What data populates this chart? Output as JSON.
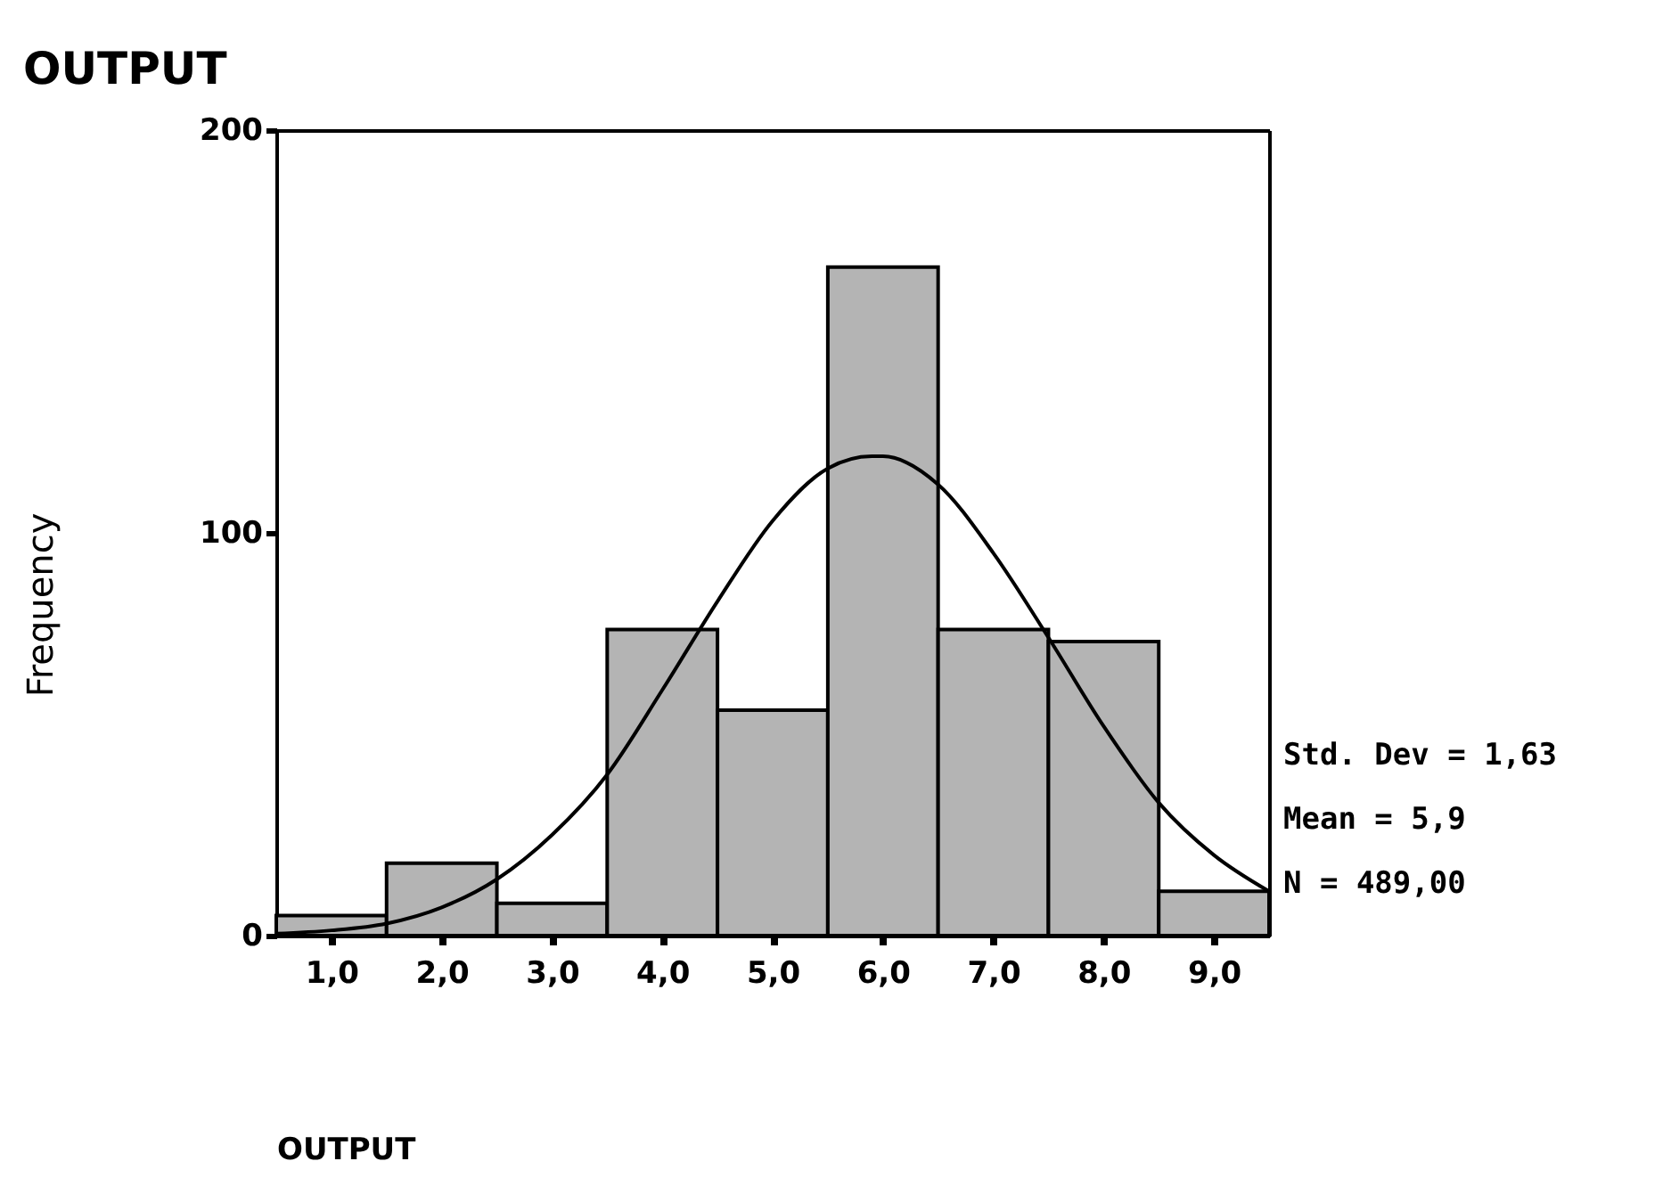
{
  "chart_data": {
    "type": "histogram",
    "title": "OUTPUT",
    "xlabel": "OUTPUT",
    "ylabel": "Frequency",
    "bins": [
      0.5,
      1.5,
      2.5,
      3.5,
      4.5,
      5.5,
      6.5,
      7.5,
      8.5,
      9.5
    ],
    "values": [
      5,
      18,
      8,
      76,
      56,
      166,
      76,
      73,
      11
    ],
    "color": "#b4b4b4",
    "series": [
      {
        "type": "line",
        "color": "#000000",
        "x": [
          0.5,
          1.0,
          1.5,
          2.0,
          2.5,
          3.0,
          3.5,
          4.0,
          4.5,
          5.0,
          5.5,
          5.9,
          6.0,
          6.5,
          7.0,
          7.5,
          8.0,
          8.5,
          9.0,
          9.5
        ],
        "values": [
          0.5,
          1.3,
          3,
          7,
          14,
          25,
          40,
          61,
          83,
          103,
          116,
          119,
          119,
          112,
          95,
          74,
          52,
          33,
          20,
          11
        ]
      }
    ],
    "xlim": [
      0.5,
      9.5
    ],
    "ylim": [
      0,
      200
    ],
    "xticks": [
      {
        "value": 1,
        "label": "1,0"
      },
      {
        "value": 2,
        "label": "2,0"
      },
      {
        "value": 3,
        "label": "3,0"
      },
      {
        "value": 4,
        "label": "4,0"
      },
      {
        "value": 5,
        "label": "5,0"
      },
      {
        "value": 6,
        "label": "6,0"
      },
      {
        "value": 7,
        "label": "7,0"
      },
      {
        "value": 8,
        "label": "8,0"
      },
      {
        "value": 9,
        "label": "9,0"
      }
    ],
    "yticks": [
      0,
      100,
      200
    ],
    "annotations": [
      "Std. Dev = 1,63",
      "Mean = 5,9",
      "N = 489,00"
    ],
    "grid": false
  }
}
